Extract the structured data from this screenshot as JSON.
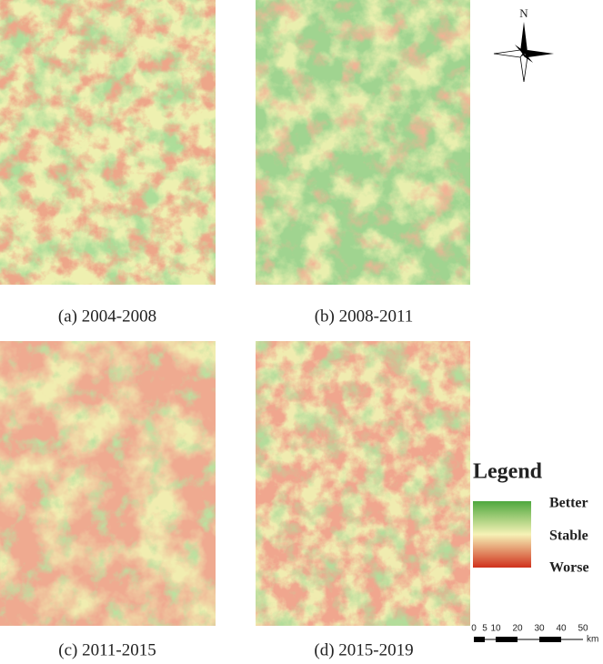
{
  "panels": [
    {
      "caption": "(a)  2004-2008"
    },
    {
      "caption": "(b)  2008-2011"
    },
    {
      "caption": "(c)  2011-2015"
    },
    {
      "caption": "(d)  2015-2019"
    }
  ],
  "north": "N",
  "legend": {
    "title": "Legend",
    "items": [
      "Better",
      "Stable",
      "Worse"
    ]
  },
  "scale_bar": {
    "labels": [
      0,
      5,
      10,
      20,
      30,
      40,
      50
    ],
    "unit": "km"
  }
}
